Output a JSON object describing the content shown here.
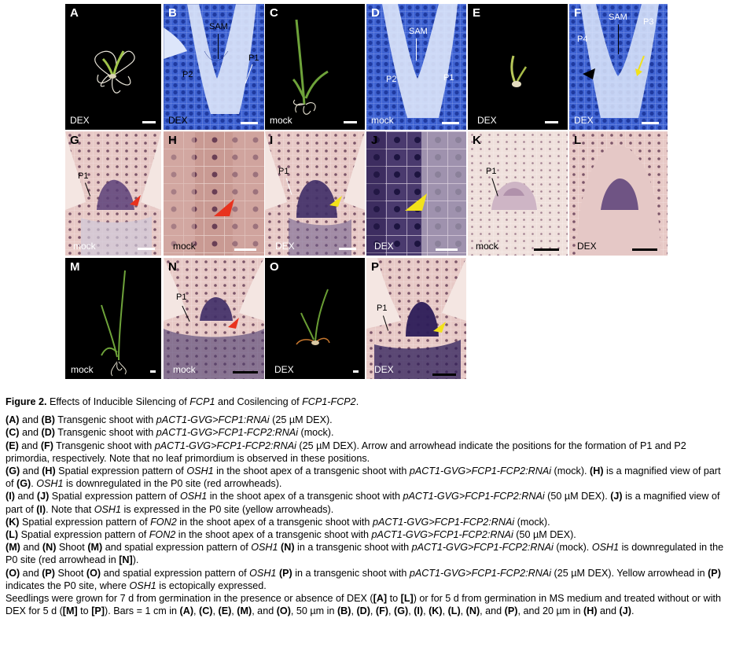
{
  "panels": {
    "A": {
      "letter": "A",
      "condition": "DEX"
    },
    "B": {
      "letter": "B",
      "condition": "DEX",
      "labels": [
        "SAM",
        "P1",
        "P2"
      ]
    },
    "C": {
      "letter": "C",
      "condition": "mock"
    },
    "D": {
      "letter": "D",
      "condition": "mock",
      "labels": [
        "SAM",
        "P1",
        "P2"
      ]
    },
    "E": {
      "letter": "E",
      "condition": "DEX"
    },
    "F": {
      "letter": "F",
      "condition": "DEX",
      "labels": [
        "SAM",
        "P3",
        "P4"
      ]
    },
    "G": {
      "letter": "G",
      "condition": "mock",
      "labels": [
        "P1"
      ]
    },
    "H": {
      "letter": "H",
      "condition": "mock"
    },
    "I": {
      "letter": "I",
      "condition": "DEX",
      "labels": [
        "P1"
      ]
    },
    "J": {
      "letter": "J",
      "condition": "DEX"
    },
    "K": {
      "letter": "K",
      "condition": "mock",
      "labels": [
        "P1"
      ]
    },
    "L": {
      "letter": "L",
      "condition": "DEX"
    },
    "M": {
      "letter": "M",
      "condition": "mock"
    },
    "N": {
      "letter": "N",
      "condition": "mock",
      "labels": [
        "P1"
      ]
    },
    "O": {
      "letter": "O",
      "condition": "DEX"
    },
    "P": {
      "letter": "P",
      "condition": "DEX",
      "labels": [
        "P1"
      ]
    }
  },
  "caption": {
    "title_lead": "Figure 2.",
    "title_1": " Effects of Inducible Silencing of ",
    "title_2": "FCP1",
    "title_3": " and Cosilencing of ",
    "title_4": "FCP1-FCP2",
    "title_5": ".",
    "ab": {
      "a": "(A)",
      "b": " and ",
      "c": "(B)",
      "d": " Transgenic shoot with ",
      "e": "pACT1-GVG>FCP1:RNAi",
      "f": " (25 µM DEX)."
    },
    "cd": {
      "a": "(C)",
      "b": " and ",
      "c": "(D)",
      "d": " Transgenic shoot with ",
      "e": "pACT1-GVG>FCP1-FCP2:RNAi",
      "f": " (mock)."
    },
    "ef": {
      "a": "(E)",
      "b": " and ",
      "c": "(F)",
      "d": " Transgenic shoot with ",
      "e": "pACT1-GVG>FCP1-FCP2:RNAi",
      "f": " (25 µM DEX). Arrow and arrowhead indicate the positions for the formation of P1 and P2 primordia, respectively. Note that no leaf primordium is observed in these positions."
    },
    "gh": {
      "a": "(G)",
      "b": " and ",
      "c": "(H)",
      "d": " Spatial expression pattern of ",
      "e": "OSH1",
      "f": " in the shoot apex of a transgenic shoot with ",
      "g": "pACT1-GVG>FCP1-FCP2:RNAi",
      "h": " (mock). ",
      "i": "(H)",
      "j": " is a magnified view of part of ",
      "k": "(G)",
      "l": ". ",
      "m": "OSH1",
      "n": " is downregulated in the P0 site (red arrowheads)."
    },
    "ij": {
      "a": "(I)",
      "b": " and ",
      "c": "(J)",
      "d": " Spatial expression pattern of ",
      "e": "OSH1",
      "f": " in the shoot apex of a transgenic shoot with ",
      "g": "pACT1-GVG>FCP1-FCP2:RNAi",
      "h": " (50 µM DEX). ",
      "i": "(J)",
      "j": " is a magnified view of part of ",
      "k": "(I)",
      "l": ". Note that ",
      "m": "OSH1",
      "n": " is expressed in the P0 site (yellow arrowheads)."
    },
    "k": {
      "a": "(K)",
      "b": " Spatial expression pattern of ",
      "c": "FON2",
      "d": " in the shoot apex of a transgenic shoot with ",
      "e": "pACT1-GVG>FCP1-FCP2:RNAi",
      "f": " (mock)."
    },
    "l": {
      "a": "(L)",
      "b": " Spatial expression pattern of ",
      "c": "FON2",
      "d": " in the shoot apex of a transgenic shoot with ",
      "e": "pACT1-GVG>FCP1-FCP2:RNAi",
      "f": " (50 µM DEX)."
    },
    "mn": {
      "a": "(M)",
      "b": " and ",
      "c": "(N)",
      "d": " Shoot ",
      "e": "(M)",
      "f": " and spatial expression pattern of ",
      "g": "OSH1",
      "h": " ",
      "i": "(N)",
      "j": " in a transgenic shoot with ",
      "k": "pACT1-GVG>FCP1-FCP2:RNAi",
      "l": " (mock). ",
      "m": "OSH1",
      "n": " is downregulated in the P0 site (red arrowhead in ",
      "o": "[N]",
      "p": ")."
    },
    "op": {
      "a": "(O)",
      "b": " and ",
      "c": "(P)",
      "d": " Shoot ",
      "e": "(O)",
      "f": " and spatial expression pattern of ",
      "g": "OSH1",
      "h": " ",
      "i": "(P)",
      "j": " in a transgenic shoot with ",
      "k": "pACT1-GVG>FCP1-FCP2:RNAi",
      "l": " (25 µM DEX). Yellow arrowhead in ",
      "m": "(P)",
      "n": " indicates the P0 site, where ",
      "o": "OSH1",
      "p": " is ectopically expressed."
    },
    "seed": {
      "a": "Seedlings were grown for 7 d from germination in the presence or absence of DEX (",
      "b": "[A]",
      "c": " to ",
      "d": "[L]",
      "e": ") or for 5 d from germination in MS medium and treated without or with DEX for 5 d (",
      "f": "[M]",
      "g": " to ",
      "h": "[P]",
      "i": "). Bars = 1 cm in ",
      "j": "(A)",
      "k": ", ",
      "l": "(C)",
      "m": ", ",
      "n": "(E)",
      "o": ", ",
      "p": "(M)",
      "q": ", and ",
      "r": "(O)",
      "s": ", 50 µm in ",
      "t": "(B)",
      "u": ", ",
      "v": "(D)",
      "w": ", ",
      "x": "(F)",
      "y": ", ",
      "z": "(G)",
      "aa": ", ",
      "ab": "(I)",
      "ac": ", ",
      "ad": "(K)",
      "ae": ", ",
      "af": "(L)",
      "ag": ", ",
      "ah": "(N)",
      "ai": ", and ",
      "aj": "(P)",
      "ak": ", and 20 µm in ",
      "al": "(H)",
      "am": " and ",
      "an": "(J)",
      "ao": "."
    }
  },
  "colors": {
    "accent_red": "#e8321e",
    "accent_yellow": "#f2e21a",
    "stain_blue": "#2a4fc4",
    "stain_purple": "#3a2a6a"
  }
}
